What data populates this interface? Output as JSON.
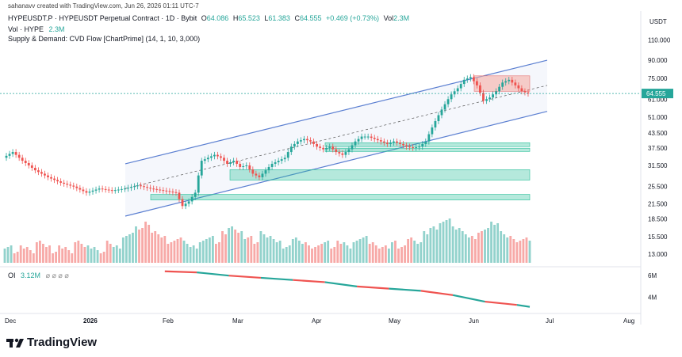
{
  "header": {
    "created_by": "sahanavv created with TradingView.com, Jun 26, 2026 01:11 UTC-7",
    "symbol_line": "HYPEUSDT.P · HYPEUSDT Perpetual Contract · 1D · Bybit",
    "ohlc": {
      "o_label": "O",
      "o_value": "64.086",
      "h_label": "H",
      "h_value": "65.523",
      "l_label": "L",
      "l_value": "61.383",
      "c_label": "C",
      "c_value": "64.555",
      "change": "+0.469 (+0.73%)",
      "vol_label": "Vol",
      "vol_value": "2.3M"
    },
    "vol_indicator_label": "Vol · HYPE",
    "vol_indicator_value": "2.3M",
    "indicator": "Supply & Demand: CVD Flow [ChartPrime] (14, 1, 10, 3,000)",
    "oi_label": "OI",
    "oi_value": "3.12M",
    "oi_dots": "⌀ ⌀ ⌀ ⌀"
  },
  "branding": {
    "logo_text": "TradingView"
  },
  "colors": {
    "up": "#26a69a",
    "down": "#ef5350",
    "channel": "#5b7fd1",
    "zone": "#2bbf9a",
    "supply": "#f4a79d",
    "price_tag": "#26a69a"
  },
  "chart_data": {
    "type": "candlestick",
    "y_scale": "log",
    "currency_label": "USDT",
    "price_ticks": [
      "110.000",
      "90.000",
      "75.000",
      "61.000",
      "51.000",
      "43.500",
      "37.500",
      "31.500",
      "25.500",
      "21.500",
      "18.500",
      "15.500",
      "13.000"
    ],
    "last_price_label": "64.555",
    "last_price": 64.555,
    "x_ticks": [
      "Dec",
      "2026",
      "Feb",
      "Mar",
      "Apr",
      "May",
      "Jun",
      "Jul",
      "Aug"
    ],
    "oi_ticks": [
      "6M",
      "4M"
    ],
    "oi_current": "3.12M",
    "price_path": [
      [
        0,
        34
      ],
      [
        3,
        36
      ],
      [
        6,
        33
      ],
      [
        10,
        30
      ],
      [
        14,
        28
      ],
      [
        18,
        26.5
      ],
      [
        22,
        25.5
      ],
      [
        26,
        24
      ],
      [
        30,
        25
      ],
      [
        34,
        24.5
      ],
      [
        38,
        25
      ],
      [
        42,
        25.8
      ],
      [
        46,
        25
      ],
      [
        50,
        24.5
      ],
      [
        54,
        24
      ],
      [
        56,
        21
      ],
      [
        58,
        22
      ],
      [
        60,
        24
      ],
      [
        62,
        33
      ],
      [
        64,
        34
      ],
      [
        66,
        35
      ],
      [
        68,
        34
      ],
      [
        70,
        32
      ],
      [
        72,
        33
      ],
      [
        74,
        31
      ],
      [
        76,
        31.5
      ],
      [
        78,
        29
      ],
      [
        80,
        28
      ],
      [
        82,
        30
      ],
      [
        84,
        32
      ],
      [
        86,
        33
      ],
      [
        88,
        34
      ],
      [
        90,
        38
      ],
      [
        92,
        40
      ],
      [
        94,
        41
      ],
      [
        96,
        40
      ],
      [
        98,
        38
      ],
      [
        100,
        37
      ],
      [
        102,
        38
      ],
      [
        104,
        36
      ],
      [
        106,
        35
      ],
      [
        108,
        37
      ],
      [
        110,
        40
      ],
      [
        112,
        42
      ],
      [
        114,
        42
      ],
      [
        116,
        41
      ],
      [
        118,
        40
      ],
      [
        120,
        39
      ],
      [
        122,
        40
      ],
      [
        124,
        39
      ],
      [
        126,
        38
      ],
      [
        128,
        37.5
      ],
      [
        130,
        38
      ],
      [
        132,
        40
      ],
      [
        134,
        46
      ],
      [
        136,
        52
      ],
      [
        138,
        58
      ],
      [
        140,
        64
      ],
      [
        142,
        68
      ],
      [
        144,
        74
      ],
      [
        146,
        76
      ],
      [
        148,
        70
      ],
      [
        150,
        60
      ],
      [
        152,
        62
      ],
      [
        154,
        66
      ],
      [
        156,
        72
      ],
      [
        158,
        74
      ],
      [
        160,
        70
      ],
      [
        162,
        66
      ],
      [
        164,
        64.555
      ]
    ],
    "volume_path": [
      3,
      2,
      3,
      2,
      4,
      3,
      2,
      3,
      2,
      4,
      3,
      3,
      2,
      4,
      3,
      5,
      6,
      7,
      8,
      6,
      5,
      4,
      5,
      4,
      3,
      4,
      5,
      4,
      6,
      7,
      6,
      5,
      4,
      6,
      5,
      4,
      3,
      5,
      4,
      3,
      3,
      4,
      3,
      4,
      3,
      4,
      5,
      4,
      3,
      3,
      4,
      3,
      5,
      4,
      6,
      7,
      8,
      9,
      7,
      6,
      5,
      6,
      7,
      8,
      6,
      5,
      4,
      5,
      4
    ],
    "oi_path": [
      [
        50,
        6.4
      ],
      [
        60,
        6.3
      ],
      [
        70,
        6.0
      ],
      [
        80,
        5.8
      ],
      [
        90,
        5.6
      ],
      [
        100,
        5.4
      ],
      [
        110,
        5.0
      ],
      [
        120,
        4.8
      ],
      [
        130,
        4.6
      ],
      [
        140,
        4.2
      ],
      [
        150,
        3.6
      ],
      [
        160,
        3.3
      ],
      [
        164,
        3.12
      ]
    ]
  }
}
